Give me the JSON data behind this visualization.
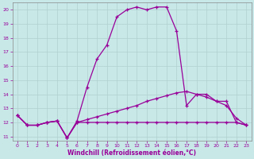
{
  "xlabel": "Windchill (Refroidissement éolien,°C)",
  "xlim": [
    -0.5,
    23.5
  ],
  "ylim": [
    10.7,
    20.5
  ],
  "yticks": [
    11,
    12,
    13,
    14,
    15,
    16,
    17,
    18,
    19,
    20
  ],
  "xticks": [
    0,
    1,
    2,
    3,
    4,
    5,
    6,
    7,
    8,
    9,
    10,
    11,
    12,
    13,
    14,
    15,
    16,
    17,
    18,
    19,
    20,
    21,
    22,
    23
  ],
  "bg_color": "#c8e8e8",
  "line_color": "#990099",
  "curve1_x": [
    0,
    1,
    2,
    3,
    4,
    5,
    6,
    7,
    8,
    9,
    10,
    11,
    12,
    13,
    14,
    15,
    16,
    17,
    18,
    19,
    20,
    21,
    22,
    23
  ],
  "curve1_y": [
    12.5,
    11.8,
    11.8,
    12.0,
    12.1,
    10.9,
    12.0,
    12.0,
    12.0,
    12.0,
    12.0,
    12.0,
    12.0,
    12.0,
    12.0,
    12.0,
    12.0,
    12.0,
    12.0,
    12.0,
    12.0,
    12.0,
    12.0,
    11.8
  ],
  "curve2_x": [
    0,
    1,
    2,
    3,
    4,
    5,
    6,
    7,
    8,
    9,
    10,
    11,
    12,
    13,
    14,
    15,
    16,
    17,
    18,
    19,
    20,
    21,
    22,
    23
  ],
  "curve2_y": [
    12.5,
    11.8,
    11.8,
    12.0,
    12.1,
    10.9,
    12.0,
    12.2,
    12.4,
    12.6,
    12.8,
    13.0,
    13.2,
    13.5,
    13.7,
    13.9,
    14.1,
    14.2,
    14.0,
    13.8,
    13.5,
    13.2,
    12.3,
    11.8
  ],
  "curve3_x": [
    0,
    1,
    2,
    3,
    4,
    5,
    6,
    7,
    8,
    9,
    10,
    11,
    12,
    13,
    14,
    15,
    16,
    17,
    18,
    19,
    20,
    21,
    22,
    23
  ],
  "curve3_y": [
    12.5,
    11.8,
    11.8,
    12.0,
    12.1,
    10.9,
    12.1,
    14.5,
    16.5,
    17.5,
    19.5,
    20.0,
    20.2,
    20.0,
    20.2,
    20.2,
    18.5,
    13.2,
    14.0,
    14.0,
    13.5,
    13.5,
    12.0,
    11.8
  ]
}
